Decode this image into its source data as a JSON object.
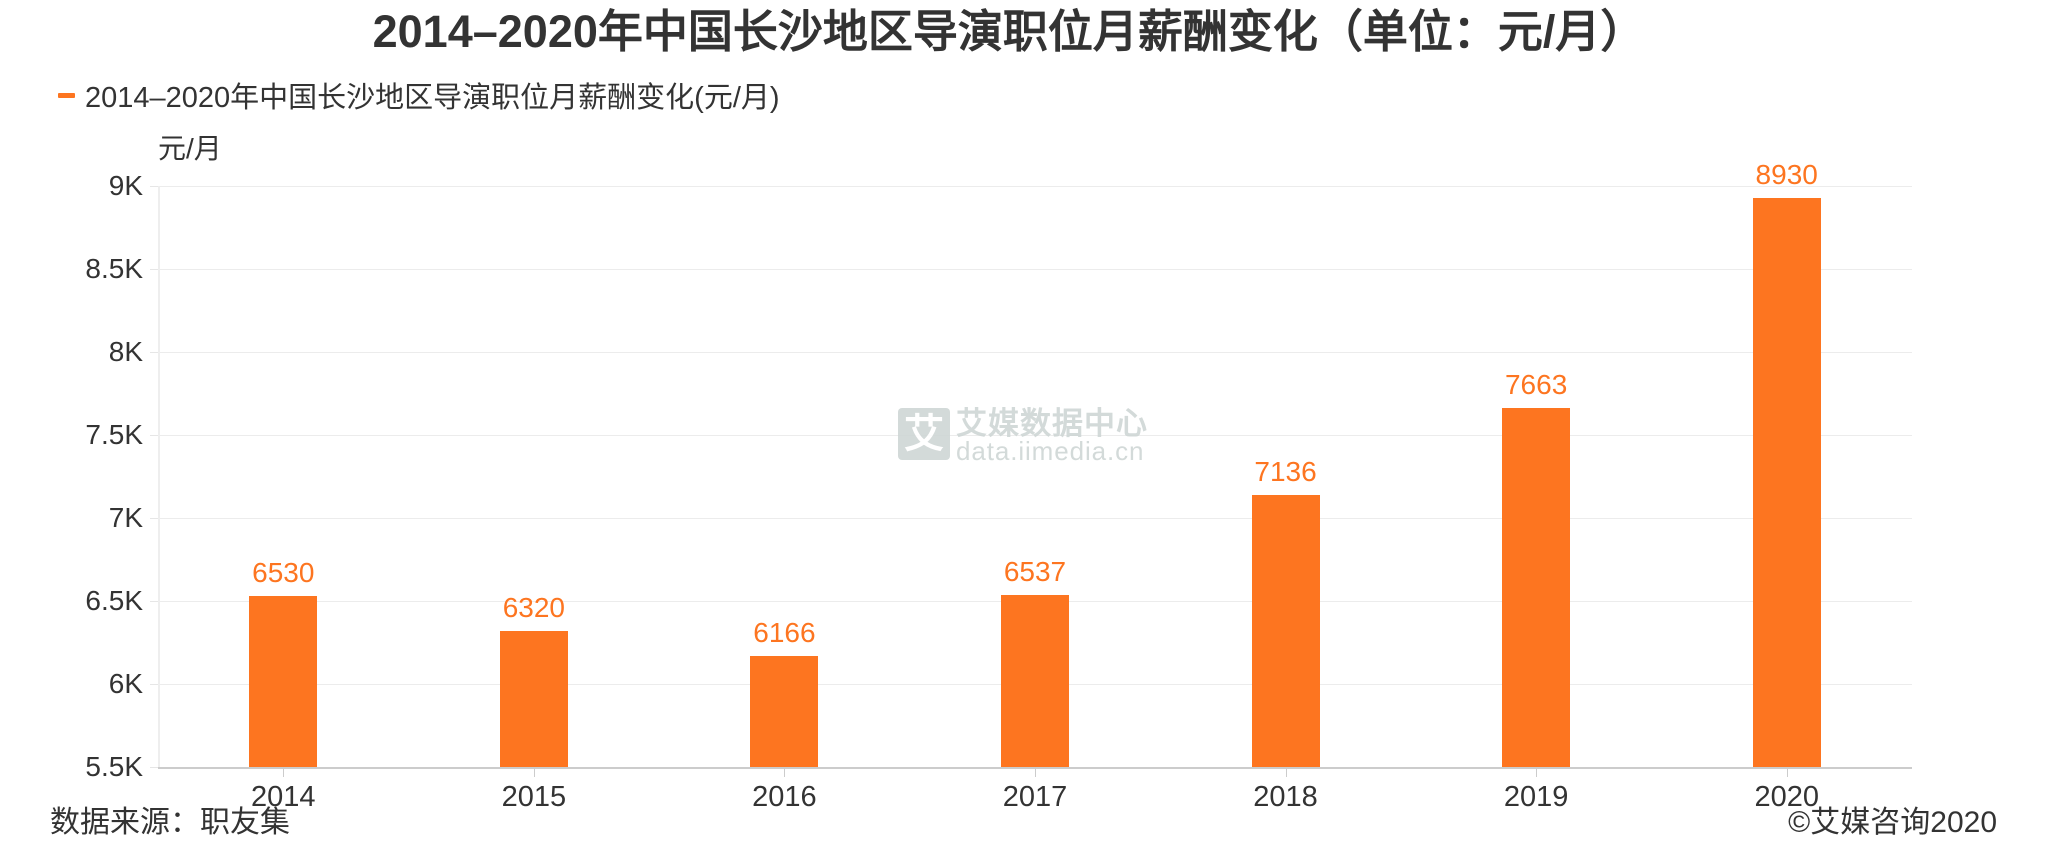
{
  "title": "2014–2020年中国长沙地区导演职位月薪酬变化（单位：元/月）",
  "legend": {
    "items": [
      {
        "label": "2014–2020年中国长沙地区导演职位月薪酬变化(元/月)",
        "color": "#fd7520"
      }
    ]
  },
  "y_axis": {
    "unit": "元/月",
    "ticks": [
      "5.5K",
      "6K",
      "6.5K",
      "7K",
      "7.5K",
      "8K",
      "8.5K",
      "9K"
    ]
  },
  "watermark": {
    "logo_glyph": "艾",
    "name": "艾媒数据中心",
    "url": "data.iimedia.cn"
  },
  "footer": {
    "source": "数据来源：职友集",
    "copyright": "©艾媒咨询2020"
  },
  "colors": {
    "bar": "#fd7520",
    "text": "#333333",
    "grid": "#ececec",
    "axis": "#cccccc",
    "watermark": "#cfd6d5"
  },
  "chart_data": {
    "type": "bar",
    "title": "2014–2020年中国长沙地区导演职位月薪酬变化（单位：元/月）",
    "categories": [
      "2014",
      "2015",
      "2016",
      "2017",
      "2018",
      "2019",
      "2020"
    ],
    "values": [
      6530,
      6320,
      6166,
      6537,
      7136,
      7663,
      8930
    ],
    "series": [
      {
        "name": "2014–2020年中国长沙地区导演职位月薪酬变化(元/月)",
        "values": [
          6530,
          6320,
          6166,
          6537,
          7136,
          7663,
          8930
        ]
      }
    ],
    "xlabel": "",
    "ylabel": "元/月",
    "ylim": [
      5500,
      9000
    ],
    "y_ticks": [
      5500,
      6000,
      6500,
      7000,
      7500,
      8000,
      8500,
      9000
    ],
    "y_tick_labels": [
      "5.5K",
      "6K",
      "6.5K",
      "7K",
      "7.5K",
      "8K",
      "8.5K",
      "9K"
    ],
    "grid": true,
    "legend_position": "top-left",
    "data_labels": true,
    "source": "数据来源：职友集"
  }
}
